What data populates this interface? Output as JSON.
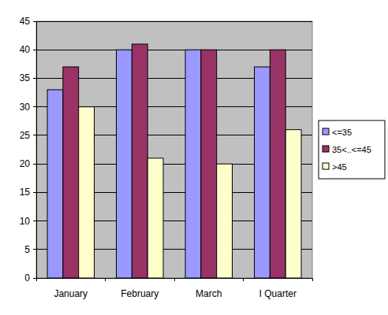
{
  "chart_data": {
    "type": "bar",
    "categories": [
      "January",
      "February",
      "March",
      "I Quarter"
    ],
    "series": [
      {
        "name": "<=35",
        "color": "#9999ff",
        "values": [
          33,
          40,
          40,
          37
        ]
      },
      {
        "name": "35<..<=45",
        "color": "#993366",
        "values": [
          37,
          41,
          40,
          40
        ]
      },
      {
        "name": ">45",
        "color": "#ffffcc",
        "values": [
          30,
          21,
          20,
          26
        ]
      }
    ],
    "ylim": [
      0,
      45
    ],
    "yticks": [
      0,
      5,
      10,
      15,
      20,
      25,
      30,
      35,
      40,
      45
    ],
    "grid": true,
    "legend": "right"
  }
}
